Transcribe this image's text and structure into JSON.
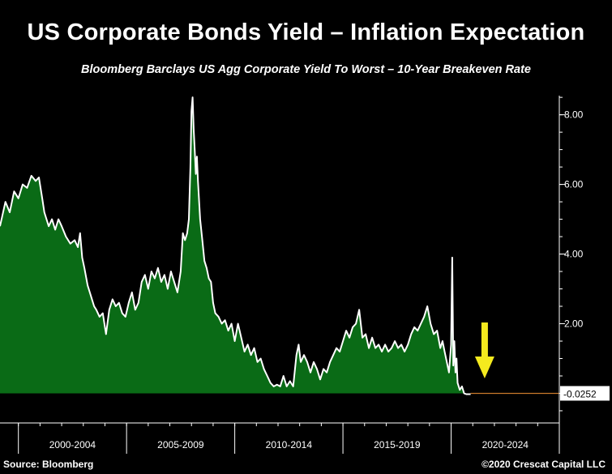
{
  "title": "US Corporate Bonds Yield – Inflation Expectation",
  "subtitle": "Bloomberg Barclays US Agg Corporate Yield To Worst – 10-Year Breakeven Rate",
  "source": "Source: Bloomberg",
  "copyright": "©2020 Crescat Capital LLC",
  "colors": {
    "fill": "#0a6b16",
    "line": "#ffffff",
    "zero_line": "#c87a2a",
    "arrow": "#f4ea1e"
  },
  "chart_data": {
    "type": "area",
    "x_tick_labels": [
      "2000-2004",
      "2005-2009",
      "2010-2014",
      "2015-2019",
      "2020-2024"
    ],
    "x_period_bounds": [
      2000,
      2005,
      2010,
      2015,
      2020,
      2025
    ],
    "xlim": [
      1999.15,
      2025
    ],
    "ylim": [
      -0.85,
      8.55
    ],
    "y_ticks": [
      2.0,
      4.0,
      6.0,
      8.0
    ],
    "y_tick_labels": [
      "2.00",
      "4.00",
      "6.00",
      "8.00"
    ],
    "last_value_label": "-0.0252",
    "series": [
      {
        "x": [
          1999.15,
          1999.4,
          1999.6,
          1999.8,
          2000.0,
          2000.2,
          2000.4,
          2000.6,
          2000.8,
          2000.95,
          2001.1,
          2001.2,
          2001.4,
          2001.55,
          2001.7,
          2001.85,
          2002.0,
          2002.2,
          2002.4,
          2002.6,
          2002.75,
          2002.85,
          2002.95,
          2003.05,
          2003.2,
          2003.35,
          2003.5,
          2003.6,
          2003.75,
          2003.9,
          2004.05,
          2004.2,
          2004.35,
          2004.5,
          2004.65,
          2004.8,
          2004.95,
          2005.1,
          2005.25,
          2005.4,
          2005.55,
          2005.7,
          2005.85,
          2006.0,
          2006.15,
          2006.3,
          2006.45,
          2006.6,
          2006.75,
          2006.9,
          2007.05,
          2007.2,
          2007.35,
          2007.5,
          2007.6,
          2007.7,
          2007.8,
          2007.88,
          2007.95,
          2008.0,
          2008.05,
          2008.1,
          2008.15,
          2008.2,
          2008.25,
          2008.3,
          2008.4,
          2008.5,
          2008.6,
          2008.7,
          2008.8,
          2008.9,
          2009.0,
          2009.1,
          2009.25,
          2009.4,
          2009.55,
          2009.7,
          2009.85,
          2010.0,
          2010.15,
          2010.3,
          2010.45,
          2010.6,
          2010.75,
          2010.9,
          2011.05,
          2011.2,
          2011.35,
          2011.5,
          2011.65,
          2011.8,
          2011.95,
          2012.1,
          2012.25,
          2012.4,
          2012.55,
          2012.7,
          2012.85,
          2012.95,
          2013.05,
          2013.2,
          2013.35,
          2013.5,
          2013.65,
          2013.8,
          2013.95,
          2014.1,
          2014.25,
          2014.4,
          2014.55,
          2014.7,
          2014.85,
          2015.0,
          2015.15,
          2015.3,
          2015.45,
          2015.6,
          2015.75,
          2015.9,
          2016.05,
          2016.2,
          2016.35,
          2016.5,
          2016.65,
          2016.8,
          2016.95,
          2017.1,
          2017.25,
          2017.4,
          2017.55,
          2017.7,
          2017.85,
          2018.0,
          2018.15,
          2018.3,
          2018.45,
          2018.6,
          2018.75,
          2018.9,
          2019.05,
          2019.2,
          2019.35,
          2019.5,
          2019.6,
          2019.7,
          2019.8,
          2019.9,
          2020.0,
          2020.05,
          2020.1,
          2020.15,
          2020.2,
          2020.25,
          2020.3,
          2020.4,
          2020.5,
          2020.6,
          2020.7,
          2020.8,
          2020.9
        ],
        "y": [
          4.8,
          5.5,
          5.2,
          5.8,
          5.6,
          6.0,
          5.9,
          6.25,
          6.1,
          6.2,
          5.6,
          5.2,
          4.8,
          5.0,
          4.7,
          5.0,
          4.8,
          4.5,
          4.3,
          4.4,
          4.2,
          4.6,
          3.9,
          3.6,
          3.1,
          2.8,
          2.5,
          2.4,
          2.2,
          2.3,
          1.7,
          2.4,
          2.7,
          2.5,
          2.6,
          2.3,
          2.2,
          2.6,
          2.9,
          2.4,
          2.6,
          3.2,
          3.4,
          3.0,
          3.5,
          3.3,
          3.6,
          3.2,
          3.4,
          3.0,
          3.5,
          3.2,
          2.9,
          3.5,
          4.6,
          4.4,
          4.6,
          5.0,
          6.5,
          8.1,
          8.5,
          7.6,
          7.0,
          6.3,
          6.8,
          6.1,
          5.0,
          4.4,
          3.8,
          3.6,
          3.3,
          3.2,
          2.6,
          2.3,
          2.2,
          2.0,
          2.1,
          1.8,
          2.0,
          1.5,
          2.0,
          1.6,
          1.2,
          1.4,
          1.1,
          1.3,
          0.9,
          1.0,
          0.7,
          0.5,
          0.3,
          0.2,
          0.25,
          0.2,
          0.5,
          0.2,
          0.35,
          0.2,
          1.1,
          1.4,
          0.9,
          1.1,
          0.9,
          0.6,
          0.9,
          0.7,
          0.4,
          0.7,
          0.6,
          0.9,
          1.1,
          1.3,
          1.2,
          1.5,
          1.8,
          1.6,
          1.9,
          2.0,
          2.4,
          1.6,
          1.7,
          1.3,
          1.6,
          1.3,
          1.4,
          1.2,
          1.4,
          1.2,
          1.3,
          1.5,
          1.3,
          1.4,
          1.2,
          1.4,
          1.7,
          1.9,
          1.8,
          2.0,
          2.2,
          2.5,
          2.0,
          1.7,
          1.8,
          1.3,
          1.5,
          1.2,
          0.9,
          0.6,
          1.4,
          3.9,
          0.8,
          1.5,
          0.6,
          1.0,
          0.3,
          0.1,
          0.2,
          0.0,
          -0.025,
          -0.025,
          -0.025
        ]
      }
    ],
    "title": "",
    "xlabel": "",
    "ylabel": "",
    "legend": "none",
    "grid": false,
    "annotation": "yellow-down-arrow"
  }
}
